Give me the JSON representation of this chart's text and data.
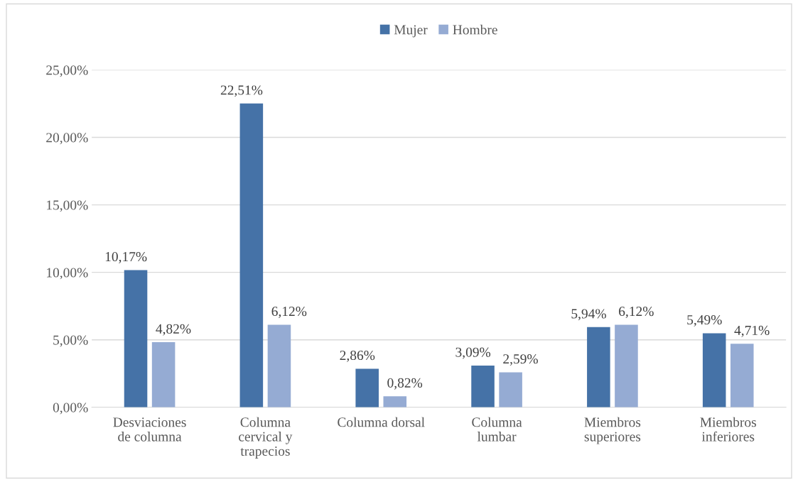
{
  "chart_data": {
    "type": "bar",
    "categories": [
      "Desviaciones\nde columna",
      "Columna\ncervical y\ntrapecios",
      "Columna dorsal",
      "Columna\nlumbar",
      "Miembros\nsuperiores",
      "Miembros\ninferiores"
    ],
    "series": [
      {
        "name": "Mujer",
        "color": "#4572a7",
        "values": [
          10.17,
          22.51,
          2.86,
          3.09,
          5.94,
          5.49
        ],
        "value_labels": [
          "10,17%",
          "22,51%",
          "2,86%",
          "3,09%",
          "5,94%",
          "5,49%"
        ]
      },
      {
        "name": "Hombre",
        "color": "#95abd3",
        "values": [
          4.82,
          6.12,
          0.82,
          2.59,
          6.12,
          4.71
        ],
        "value_labels": [
          "4,82%",
          "6,12%",
          "0,82%",
          "2,59%",
          "6,12%",
          "4,71%"
        ]
      }
    ],
    "ylim": [
      0,
      25
    ],
    "yticks": [
      {
        "value": 0,
        "label": "0,00%"
      },
      {
        "value": 5,
        "label": "5,00%"
      },
      {
        "value": 10,
        "label": "10,00%"
      },
      {
        "value": 15,
        "label": "15,00%"
      },
      {
        "value": 20,
        "label": "20,00%"
      },
      {
        "value": 25,
        "label": "25,00%"
      }
    ],
    "grid": "y",
    "legend": "top"
  }
}
